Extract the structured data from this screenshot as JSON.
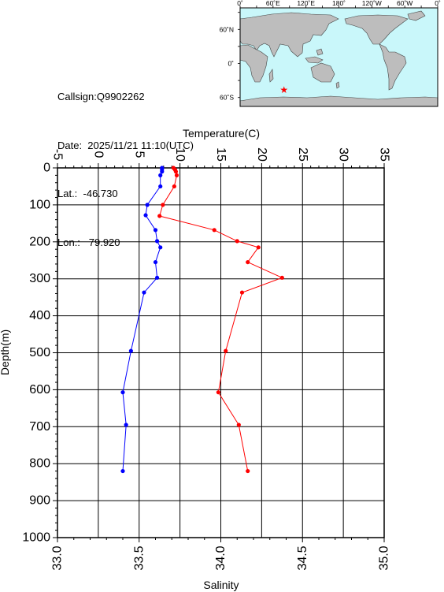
{
  "info": {
    "callsign": "Callsign:Q9902262",
    "date": "Date:  2025/11/21 11:10(UTC)",
    "lat": "Lat.:  -46.730",
    "lon": "Lon.:   79.920"
  },
  "map": {
    "lon_labels": [
      "0˚",
      "60˚E",
      "120˚E",
      "180˚",
      "120˚W",
      "60˚W",
      "0˚"
    ],
    "lat_labels": [
      "60˚N",
      "0˚",
      "60˚S"
    ],
    "ocean_color": "#c9f7fa",
    "land_color": "#bdbdbd",
    "marker": {
      "lon": 79.92,
      "lat": -46.73,
      "color": "#ff0000",
      "symbol": "star"
    }
  },
  "chart_data": {
    "type": "line",
    "xlabel_top": "Temperature(C)",
    "xlabel_bottom": "Salinity",
    "ylabel": "Depth(m)",
    "temperature_ticks": [
      "-5",
      "0",
      "5",
      "10",
      "15",
      "20",
      "25",
      "30",
      "35"
    ],
    "salinity_ticks": [
      "33.0",
      "33.5",
      "34.0",
      "34.5",
      "35.0"
    ],
    "depth_ticks": [
      "0",
      "100",
      "200",
      "300",
      "400",
      "500",
      "600",
      "700",
      "800",
      "900",
      "1000"
    ],
    "temperature_range": [
      -5,
      35
    ],
    "salinity_range": [
      33.0,
      35.0
    ],
    "depth_range": [
      0,
      1000
    ],
    "grid": true,
    "series": [
      {
        "axis": "temperature",
        "color": "#ff0000",
        "points": [
          {
            "x": 9.2,
            "y": 0
          },
          {
            "x": 9.4,
            "y": 5
          },
          {
            "x": 9.5,
            "y": 10
          },
          {
            "x": 9.6,
            "y": 20
          },
          {
            "x": 9.3,
            "y": 50
          },
          {
            "x": 7.9,
            "y": 100
          },
          {
            "x": 7.5,
            "y": 130
          },
          {
            "x": 14.2,
            "y": 168
          },
          {
            "x": 17.0,
            "y": 198
          },
          {
            "x": 19.6,
            "y": 215
          },
          {
            "x": 18.3,
            "y": 255
          },
          {
            "x": 22.5,
            "y": 297
          },
          {
            "x": 17.6,
            "y": 337
          },
          {
            "x": 15.6,
            "y": 495
          },
          {
            "x": 14.7,
            "y": 607
          },
          {
            "x": 17.2,
            "y": 695
          },
          {
            "x": 18.3,
            "y": 820
          }
        ]
      },
      {
        "axis": "salinity",
        "color": "#0000ff",
        "points": [
          {
            "x": 33.64,
            "y": 0
          },
          {
            "x": 33.64,
            "y": 5
          },
          {
            "x": 33.64,
            "y": 10
          },
          {
            "x": 33.63,
            "y": 20
          },
          {
            "x": 33.63,
            "y": 50
          },
          {
            "x": 33.55,
            "y": 100
          },
          {
            "x": 33.54,
            "y": 128
          },
          {
            "x": 33.6,
            "y": 168
          },
          {
            "x": 33.61,
            "y": 198
          },
          {
            "x": 33.63,
            "y": 215
          },
          {
            "x": 33.6,
            "y": 255
          },
          {
            "x": 33.61,
            "y": 297
          },
          {
            "x": 33.53,
            "y": 337
          },
          {
            "x": 33.45,
            "y": 495
          },
          {
            "x": 33.4,
            "y": 607
          },
          {
            "x": 33.42,
            "y": 695
          },
          {
            "x": 33.4,
            "y": 820
          }
        ]
      }
    ]
  }
}
